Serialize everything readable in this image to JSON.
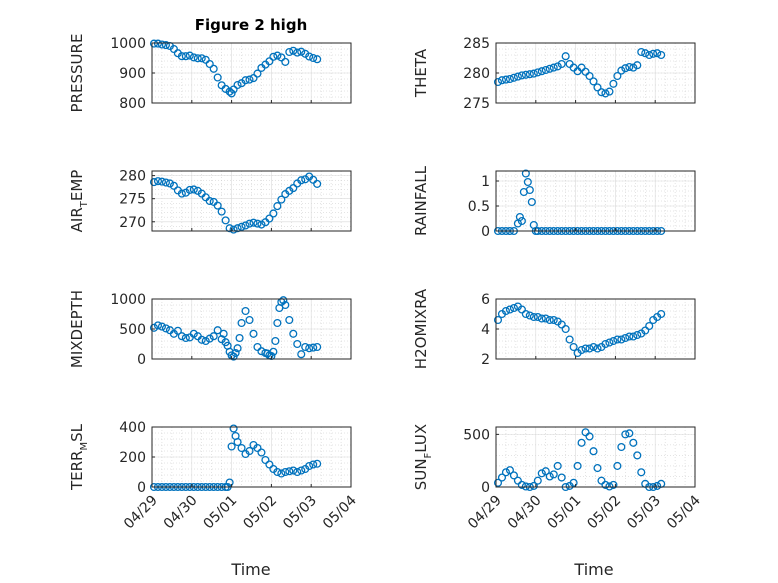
{
  "title": "Figure 2 high",
  "xlabel": "Time",
  "xticks": [
    "04/29",
    "04/30",
    "05/01",
    "05/02",
    "05/03",
    "05/04"
  ],
  "marker_color": "#0072BD",
  "chart_data": [
    {
      "type": "scatter",
      "ylabel": "PRESSURE",
      "ylim": [
        800,
        1000
      ],
      "yticks": [
        800,
        900,
        1000
      ],
      "grid": true,
      "x": [
        0.05,
        0.15,
        0.25,
        0.35,
        0.45,
        0.55,
        0.65,
        0.75,
        0.85,
        0.95,
        1.05,
        1.15,
        1.25,
        1.35,
        1.45,
        1.55,
        1.65,
        1.75,
        1.85,
        1.95,
        2.0,
        2.05,
        2.15,
        2.25,
        2.35,
        2.45,
        2.55,
        2.65,
        2.75,
        2.85,
        2.95,
        3.05,
        3.15,
        3.25,
        3.35,
        3.45,
        3.55,
        3.65,
        3.75,
        3.85,
        3.95,
        4.05,
        4.15
      ],
      "y": [
        998,
        998,
        995,
        993,
        990,
        980,
        966,
        956,
        956,
        958,
        952,
        949,
        949,
        944,
        930,
        914,
        885,
        859,
        847,
        838,
        832,
        845,
        860,
        866,
        876,
        878,
        883,
        898,
        917,
        928,
        939,
        954,
        958,
        952,
        937,
        970,
        974,
        968,
        971,
        964,
        955,
        950,
        946
      ]
    },
    {
      "type": "scatter",
      "ylabel": "THETA",
      "ylim": [
        275,
        285
      ],
      "yticks": [
        275,
        280,
        285
      ],
      "grid": true,
      "x": [
        0.05,
        0.15,
        0.25,
        0.35,
        0.45,
        0.55,
        0.65,
        0.75,
        0.85,
        0.95,
        1.05,
        1.15,
        1.25,
        1.35,
        1.45,
        1.55,
        1.65,
        1.75,
        1.85,
        1.95,
        2.05,
        2.15,
        2.25,
        2.35,
        2.45,
        2.55,
        2.65,
        2.75,
        2.85,
        2.95,
        3.05,
        3.15,
        3.25,
        3.35,
        3.45,
        3.55,
        3.65,
        3.75,
        3.85,
        3.95,
        4.05,
        4.15
      ],
      "y": [
        278.5,
        278.8,
        278.9,
        279.0,
        279.2,
        279.4,
        279.6,
        279.7,
        279.8,
        279.9,
        280.1,
        280.3,
        280.5,
        280.7,
        280.9,
        281.1,
        281.5,
        282.8,
        281.5,
        280.9,
        280.3,
        280.9,
        280.2,
        279.5,
        278.6,
        277.6,
        276.8,
        276.6,
        276.9,
        278.2,
        279.5,
        280.4,
        280.8,
        281.0,
        280.9,
        281.3,
        283.5,
        283.3,
        283.0,
        283.2,
        283.3,
        283.0
      ]
    },
    {
      "type": "scatter",
      "ylabel": "AIR",
      "ylabel_sub": "T",
      "ylabel_rest": "EMP",
      "ylim": [
        268,
        281
      ],
      "yticks": [
        270,
        275,
        280
      ],
      "grid": true,
      "x": [
        0.05,
        0.15,
        0.25,
        0.35,
        0.45,
        0.55,
        0.65,
        0.75,
        0.85,
        0.95,
        1.05,
        1.15,
        1.25,
        1.35,
        1.45,
        1.55,
        1.65,
        1.75,
        1.85,
        1.95,
        2.05,
        2.15,
        2.25,
        2.35,
        2.45,
        2.55,
        2.65,
        2.75,
        2.85,
        2.95,
        3.05,
        3.15,
        3.25,
        3.35,
        3.45,
        3.55,
        3.65,
        3.75,
        3.85,
        3.95,
        4.05,
        4.15
      ],
      "y": [
        278.6,
        278.8,
        278.7,
        278.5,
        278.3,
        277.8,
        276.8,
        276.1,
        276.3,
        276.9,
        277.0,
        276.7,
        276.1,
        275.3,
        274.5,
        274.3,
        273.5,
        272.2,
        270.3,
        268.6,
        268.3,
        268.6,
        268.9,
        269.2,
        269.6,
        269.8,
        269.6,
        269.4,
        269.9,
        270.7,
        271.8,
        273.4,
        274.8,
        276.0,
        276.7,
        277.3,
        278.3,
        279.0,
        279.2,
        279.8,
        279.1,
        278.2
      ]
    },
    {
      "type": "scatter",
      "ylabel": "RAINFALL",
      "ylim": [
        0,
        1.2
      ],
      "yticks": [
        0,
        0.5,
        1
      ],
      "grid": true,
      "x": [
        0.05,
        0.15,
        0.25,
        0.35,
        0.45,
        0.55,
        0.6,
        0.65,
        0.7,
        0.75,
        0.8,
        0.85,
        0.9,
        0.95,
        1.0,
        1.05,
        1.15,
        1.25,
        1.35,
        1.45,
        1.55,
        1.65,
        1.75,
        1.85,
        1.95,
        2.05,
        2.15,
        2.25,
        2.35,
        2.45,
        2.55,
        2.65,
        2.75,
        2.85,
        2.95,
        3.05,
        3.15,
        3.25,
        3.35,
        3.45,
        3.55,
        3.65,
        3.75,
        3.85,
        3.95,
        4.05,
        4.15
      ],
      "y": [
        0,
        0,
        0,
        0,
        0,
        0.15,
        0.28,
        0.2,
        0.78,
        1.15,
        0.98,
        0.82,
        0.58,
        0.12,
        0,
        0,
        0,
        0,
        0,
        0,
        0,
        0,
        0,
        0,
        0,
        0,
        0,
        0,
        0,
        0,
        0,
        0,
        0,
        0,
        0,
        0,
        0,
        0,
        0,
        0,
        0,
        0,
        0,
        0,
        0,
        0,
        0
      ]
    },
    {
      "type": "scatter",
      "ylabel": "MIXDEPTH",
      "ylim": [
        0,
        1000
      ],
      "yticks": [
        0,
        500,
        1000
      ],
      "grid": true,
      "x": [
        0.05,
        0.15,
        0.25,
        0.35,
        0.45,
        0.55,
        0.65,
        0.75,
        0.85,
        0.95,
        1.05,
        1.15,
        1.25,
        1.35,
        1.45,
        1.55,
        1.65,
        1.75,
        1.8,
        1.85,
        1.9,
        1.95,
        2.0,
        2.05,
        2.1,
        2.15,
        2.2,
        2.25,
        2.35,
        2.45,
        2.55,
        2.65,
        2.75,
        2.85,
        2.9,
        2.95,
        3.0,
        3.05,
        3.1,
        3.15,
        3.2,
        3.25,
        3.3,
        3.35,
        3.45,
        3.55,
        3.65,
        3.75,
        3.85,
        3.95,
        4.05,
        4.15
      ],
      "y": [
        520,
        560,
        540,
        510,
        480,
        420,
        470,
        380,
        350,
        360,
        420,
        380,
        320,
        300,
        340,
        380,
        480,
        330,
        420,
        280,
        220,
        120,
        60,
        40,
        100,
        180,
        350,
        600,
        800,
        650,
        420,
        200,
        130,
        100,
        90,
        60,
        50,
        120,
        300,
        600,
        850,
        950,
        980,
        900,
        650,
        420,
        250,
        80,
        200,
        180,
        190,
        200
      ]
    },
    {
      "type": "scatter",
      "ylabel": "H2OMIXRA",
      "ylim": [
        2,
        6
      ],
      "yticks": [
        2,
        4,
        6
      ],
      "grid": true,
      "x": [
        0.05,
        0.15,
        0.25,
        0.35,
        0.45,
        0.55,
        0.65,
        0.75,
        0.85,
        0.95,
        1.05,
        1.15,
        1.25,
        1.35,
        1.45,
        1.55,
        1.65,
        1.75,
        1.85,
        1.95,
        2.05,
        2.15,
        2.25,
        2.35,
        2.45,
        2.55,
        2.65,
        2.75,
        2.85,
        2.95,
        3.05,
        3.15,
        3.25,
        3.35,
        3.45,
        3.55,
        3.65,
        3.75,
        3.85,
        3.95,
        4.05,
        4.15
      ],
      "y": [
        4.6,
        5.0,
        5.2,
        5.3,
        5.4,
        5.5,
        5.3,
        5.0,
        4.9,
        4.8,
        4.8,
        4.7,
        4.7,
        4.6,
        4.6,
        4.5,
        4.3,
        4.0,
        3.3,
        2.8,
        2.4,
        2.6,
        2.7,
        2.7,
        2.8,
        2.7,
        2.8,
        3.0,
        3.1,
        3.2,
        3.3,
        3.3,
        3.4,
        3.5,
        3.5,
        3.6,
        3.7,
        3.9,
        4.2,
        4.6,
        4.8,
        5.0
      ]
    },
    {
      "type": "scatter",
      "ylabel": "TERR",
      "ylabel_sub": "M",
      "ylabel_rest": "SL",
      "ylim": [
        0,
        400
      ],
      "yticks": [
        0,
        200,
        400
      ],
      "grid": true,
      "x": [
        0.05,
        0.15,
        0.25,
        0.35,
        0.45,
        0.55,
        0.65,
        0.75,
        0.85,
        0.95,
        1.05,
        1.15,
        1.25,
        1.35,
        1.45,
        1.55,
        1.65,
        1.75,
        1.85,
        1.9,
        1.95,
        2.0,
        2.05,
        2.1,
        2.15,
        2.25,
        2.35,
        2.45,
        2.55,
        2.65,
        2.75,
        2.85,
        2.95,
        3.05,
        3.15,
        3.25,
        3.35,
        3.45,
        3.55,
        3.65,
        3.75,
        3.85,
        3.95,
        4.05,
        4.15
      ],
      "y": [
        0,
        0,
        0,
        0,
        0,
        0,
        0,
        0,
        0,
        0,
        0,
        0,
        0,
        0,
        0,
        0,
        0,
        0,
        0,
        0,
        30,
        270,
        390,
        340,
        300,
        260,
        220,
        240,
        280,
        260,
        230,
        180,
        150,
        120,
        100,
        90,
        100,
        105,
        110,
        100,
        110,
        120,
        140,
        150,
        155
      ]
    },
    {
      "type": "scatter",
      "ylabel": "SUN",
      "ylabel_sub": "F",
      "ylabel_rest": "LUX",
      "ylim": [
        0,
        570
      ],
      "yticks": [
        0,
        500
      ],
      "grid": true,
      "x": [
        0.05,
        0.15,
        0.25,
        0.35,
        0.45,
        0.55,
        0.65,
        0.75,
        0.85,
        0.95,
        1.05,
        1.15,
        1.25,
        1.35,
        1.45,
        1.55,
        1.65,
        1.75,
        1.85,
        1.95,
        2.05,
        2.15,
        2.25,
        2.35,
        2.45,
        2.55,
        2.65,
        2.75,
        2.85,
        2.95,
        3.05,
        3.15,
        3.25,
        3.35,
        3.45,
        3.55,
        3.65,
        3.75,
        3.85,
        3.95,
        4.05,
        4.15
      ],
      "y": [
        40,
        90,
        140,
        160,
        110,
        60,
        20,
        5,
        0,
        10,
        60,
        130,
        150,
        100,
        120,
        200,
        90,
        0,
        10,
        40,
        200,
        420,
        520,
        480,
        340,
        180,
        60,
        20,
        5,
        20,
        200,
        380,
        500,
        510,
        420,
        300,
        140,
        30,
        0,
        0,
        10,
        30
      ]
    }
  ]
}
